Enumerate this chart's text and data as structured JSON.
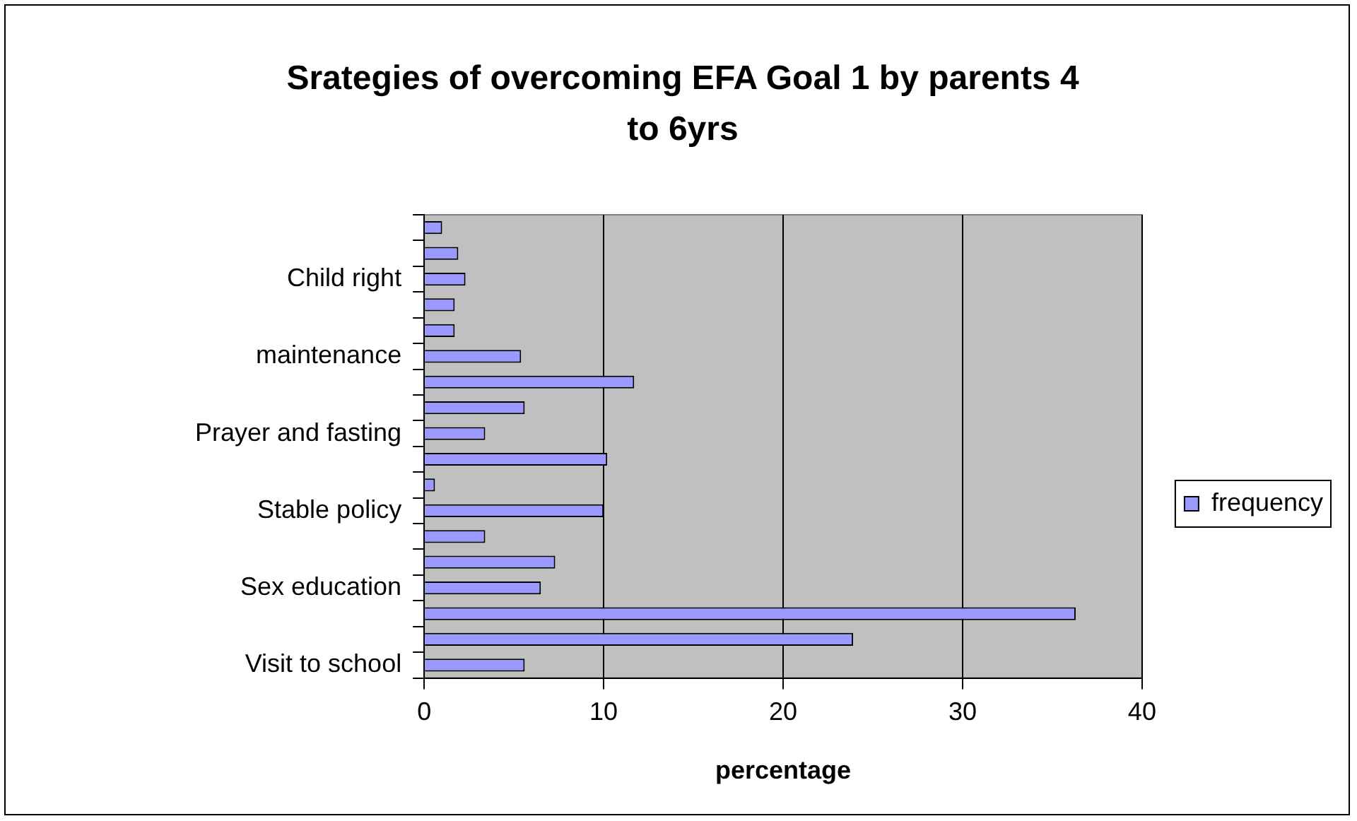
{
  "chart_data": {
    "type": "bar",
    "orientation": "horizontal",
    "title": "Srategies of overcoming EFA Goal 1 by parents 4 to 6yrs",
    "xlabel": "percentage",
    "categories": [
      null,
      null,
      "Child right",
      null,
      null,
      "maintenance",
      null,
      null,
      "Prayer and fasting",
      null,
      null,
      "Stable policy",
      null,
      null,
      "Sex education",
      null,
      null,
      "Visit to school"
    ],
    "series": [
      {
        "name": "frequency",
        "color": "#9999ff",
        "values": [
          1.0,
          1.9,
          2.3,
          1.7,
          1.7,
          5.4,
          11.7,
          5.6,
          3.4,
          10.2,
          0.6,
          10.0,
          3.4,
          7.3,
          6.5,
          36.3,
          23.9,
          5.6
        ]
      }
    ],
    "xlim": [
      0,
      40
    ],
    "xticks": [
      0,
      10,
      20,
      30,
      40
    ],
    "grid": "x",
    "legend": "right"
  }
}
